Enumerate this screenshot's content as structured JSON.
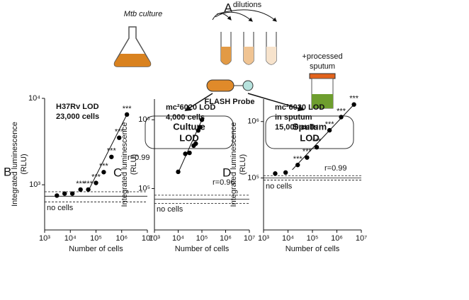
{
  "diagram": {
    "panel_label": "A",
    "culture": "Mtb culture",
    "dilutions": "dilutions",
    "sputum": [
      "+processed",
      "sputum"
    ],
    "probe": "FLASH Probe",
    "culture_box": [
      "Culture",
      "LOD"
    ],
    "sputum_box": [
      "Sputum",
      "LOD"
    ]
  },
  "chart_data": [
    {
      "type": "scatter",
      "panel_label": "B",
      "annotation_lines": [
        "H37Rv LOD",
        "23,000 cells"
      ],
      "r_label": "r=0.99",
      "baseline_label": "no cells",
      "xlabel": "Number of cells",
      "ylabel": [
        "Integrated luminescence",
        "(RLU)"
      ],
      "log_x": true,
      "log_y": true,
      "color": "#000000",
      "x": [
        3000,
        6000,
        12000,
        25000,
        50000,
        100000,
        200000,
        400000,
        800000,
        1600000
      ],
      "values": [
        750,
        790,
        790,
        880,
        880,
        1050,
        1400,
        2100,
        3500,
        6500
      ],
      "significance_labels": [
        null,
        null,
        null,
        "***",
        "***",
        "***",
        "***",
        "***",
        "***",
        "***"
      ],
      "fit_line": {
        "x": [
          50000,
          1600000
        ],
        "y": [
          850,
          6500
        ]
      },
      "baseline_lines": [
        {
          "value": 830,
          "style": "dashed"
        },
        {
          "value": 737,
          "style": "solid"
        },
        {
          "value": 634,
          "style": "dashed"
        }
      ],
      "xlim": [
        1000,
        10000000
      ],
      "ylim": [
        300,
        10000
      ],
      "xticks": [
        {
          "value": 1000,
          "label": "10³"
        },
        {
          "value": 10000,
          "label": "10⁴"
        },
        {
          "value": 100000,
          "label": "10⁵"
        },
        {
          "value": 1000000,
          "label": "10⁶"
        },
        {
          "value": 10000000,
          "label": "10⁷"
        }
      ],
      "yticks": [
        {
          "value": 1000,
          "label": "10³"
        },
        {
          "value": 10000,
          "label": "10⁴"
        }
      ]
    },
    {
      "type": "scatter",
      "panel_label": "C",
      "annotation_lines": [
        "mc²6020 LOD",
        "4,000 cells"
      ],
      "r_label": "r=0.96",
      "baseline_label": "no cells",
      "xlabel": "Number of cells",
      "ylabel": [
        "Integrated luminescence",
        "(RLU)"
      ],
      "log_x": true,
      "log_y": true,
      "color": "#000000",
      "x": [
        10000,
        20000,
        30000,
        45000,
        55000,
        70000,
        85000,
        100000
      ],
      "values": [
        175000,
        320000,
        330000,
        420000,
        450000,
        700000,
        780000,
        1000000
      ],
      "fit_line": {
        "x": [
          10000,
          100000
        ],
        "y": [
          170000,
          1000000
        ]
      },
      "baseline_lines": [
        {
          "value": 80000,
          "style": "dashed"
        },
        {
          "value": 70000,
          "style": "solid"
        },
        {
          "value": 61000,
          "style": "dashed"
        }
      ],
      "xlim": [
        1000,
        10000000
      ],
      "ylim": [
        25000,
        2000000
      ],
      "xticks": [
        {
          "value": 1000,
          "label": "10³"
        },
        {
          "value": 10000,
          "label": "10⁴"
        },
        {
          "value": 100000,
          "label": "10⁵"
        },
        {
          "value": 1000000,
          "label": "10⁶"
        },
        {
          "value": 10000000,
          "label": "10⁷"
        }
      ],
      "yticks": [
        {
          "value": 100000,
          "label": "10⁵"
        },
        {
          "value": 1000000,
          "label": "10⁶"
        }
      ]
    },
    {
      "type": "scatter",
      "panel_label": "D",
      "annotation_lines": [
        "mc²6020 LOD",
        "in sputum",
        "15,000 cells"
      ],
      "r_label": "r=0.99",
      "baseline_label": "no cells",
      "xlabel": "Number of cells",
      "ylabel": [
        "Integrated luminescence",
        "(RLU)"
      ],
      "log_x": true,
      "log_y": true,
      "color": "#000000",
      "x": [
        3000,
        8000,
        25000,
        60000,
        150000,
        500000,
        1500000,
        5000000
      ],
      "values": [
        120000,
        125000,
        170000,
        230000,
        350000,
        700000,
        1200000,
        2000000
      ],
      "significance_labels": [
        null,
        null,
        "***",
        "***",
        "***",
        "***",
        "***",
        "***"
      ],
      "fit_line": {
        "x": [
          15000,
          5000000
        ],
        "y": [
          140000,
          2000000
        ]
      },
      "baseline_lines": [
        {
          "value": 110000,
          "style": "dashed"
        },
        {
          "value": 100000,
          "style": "solid"
        },
        {
          "value": 92000,
          "style": "dashed"
        }
      ],
      "xlim": [
        1000,
        10000000
      ],
      "ylim": [
        12000,
        2500000
      ],
      "xticks": [
        {
          "value": 1000,
          "label": "10³"
        },
        {
          "value": 10000,
          "label": "10⁴"
        },
        {
          "value": 100000,
          "label": "10⁵"
        },
        {
          "value": 1000000,
          "label": "10⁶"
        },
        {
          "value": 10000000,
          "label": "10⁷"
        }
      ],
      "yticks": [
        {
          "value": 100000,
          "label": "10⁵"
        },
        {
          "value": 1000000,
          "label": "10⁶"
        }
      ]
    }
  ]
}
